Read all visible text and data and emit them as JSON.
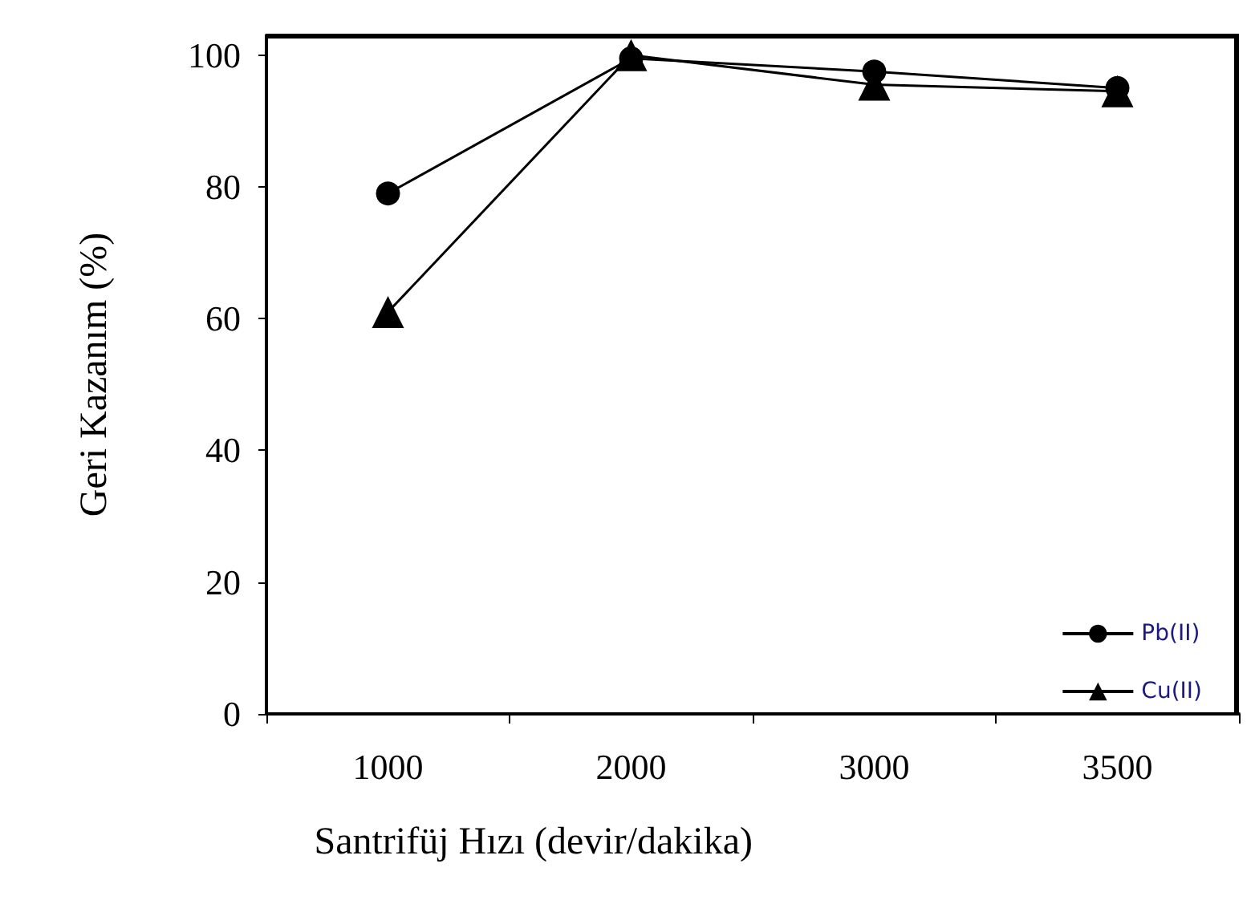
{
  "chart_data": {
    "type": "line",
    "xlabel": "Santrifüj Hızı (devir/dakika)",
    "ylabel": "Geri Kazanım (%)",
    "categories": [
      "1000",
      "2000",
      "3000",
      "3500"
    ],
    "series": [
      {
        "name": "Pb(II)",
        "color": "#000000",
        "marker": "circle",
        "values": [
          79,
          99.5,
          97.5,
          95
        ]
      },
      {
        "name": "Cu(II)",
        "color": "#000000",
        "marker": "triangle",
        "values": [
          61,
          100,
          95.5,
          94.5
        ]
      }
    ],
    "ylim": [
      0,
      103
    ],
    "yticks": [
      0,
      20,
      40,
      60,
      80,
      100
    ],
    "grid": false,
    "legend": "bottom right",
    "line_style": "solid"
  }
}
